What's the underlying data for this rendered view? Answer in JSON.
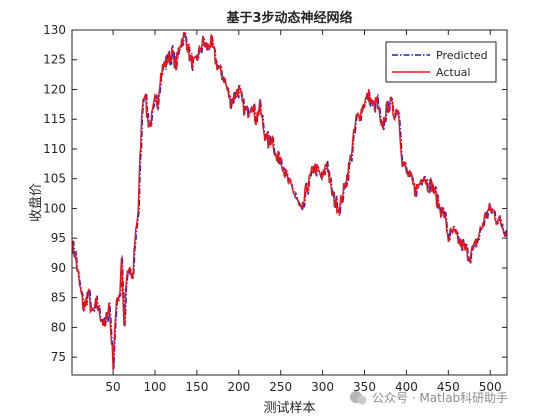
{
  "chart_data": {
    "type": "line",
    "title": "基于3步动态神经网络",
    "xlabel": "测试样本",
    "ylabel": "收盘价",
    "xlim": [
      1,
      520
    ],
    "ylim": [
      72,
      130
    ],
    "xticks": [
      50,
      100,
      150,
      200,
      250,
      300,
      350,
      400,
      450,
      500
    ],
    "yticks": [
      75,
      80,
      85,
      90,
      95,
      100,
      105,
      110,
      115,
      120,
      125,
      130
    ],
    "grid": false,
    "legend_position": "top-right",
    "series": [
      {
        "name": "Predicted",
        "color": "#1f1fbf",
        "style": "dash-dot"
      },
      {
        "name": "Actual",
        "color": "#e8141a",
        "style": "solid"
      }
    ],
    "actual_keypoints": {
      "x": [
        1,
        5,
        10,
        15,
        20,
        25,
        30,
        35,
        40,
        45,
        48,
        50,
        52,
        55,
        58,
        60,
        63,
        66,
        70,
        73,
        76,
        80,
        82,
        85,
        88,
        90,
        93,
        96,
        100,
        103,
        106,
        110,
        115,
        120,
        125,
        130,
        135,
        138,
        142,
        147,
        152,
        157,
        162,
        167,
        172,
        177,
        182,
        186,
        190,
        195,
        200,
        205,
        210,
        215,
        220,
        225,
        230,
        235,
        240,
        245,
        250,
        255,
        260,
        265,
        270,
        275,
        280,
        285,
        290,
        295,
        300,
        305,
        310,
        315,
        320,
        325,
        330,
        335,
        340,
        345,
        350,
        355,
        360,
        365,
        370,
        375,
        380,
        385,
        390,
        395,
        400,
        405,
        410,
        415,
        420,
        425,
        430,
        435,
        440,
        445,
        450,
        455,
        460,
        465,
        470,
        475,
        480,
        485,
        490,
        495,
        500,
        505,
        510,
        515,
        520
      ],
      "y": [
        94,
        92,
        87,
        83,
        86,
        82,
        84,
        82,
        80,
        84,
        78,
        74,
        80,
        85,
        86,
        92,
        80,
        88,
        90,
        87,
        95,
        100,
        108,
        118,
        120,
        116,
        114,
        115,
        118,
        118,
        122,
        124,
        125,
        126,
        124,
        128,
        129,
        128,
        125,
        124,
        126,
        128,
        127,
        128,
        125,
        123,
        122,
        120,
        118,
        119,
        120,
        117,
        116,
        118,
        115,
        117,
        113,
        111,
        112,
        108,
        109,
        106,
        104,
        103,
        101,
        99,
        103,
        105,
        107,
        106,
        105,
        108,
        103,
        101,
        100,
        103,
        106,
        110,
        115,
        116,
        118,
        119,
        117,
        118,
        113,
        116,
        118,
        116,
        117,
        108,
        106,
        105,
        103,
        104,
        106,
        104,
        104,
        102,
        100,
        99,
        95,
        96,
        95,
        94,
        93,
        92,
        93,
        95,
        97,
        99,
        100,
        99,
        98,
        97,
        96
      ]
    },
    "watermark": "公众号 · Matlab科研助手"
  }
}
